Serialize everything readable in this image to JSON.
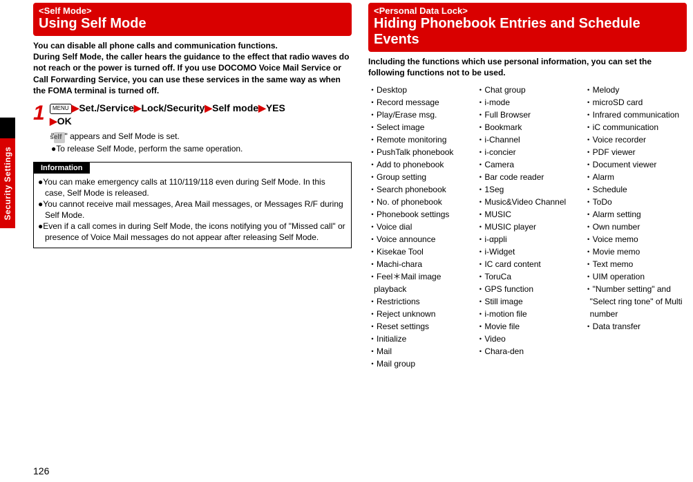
{
  "side_tab": {
    "label": "Security Settings"
  },
  "page_number": "126",
  "left": {
    "tag": "<Self Mode>",
    "title": "Using Self Mode",
    "intro": "You can disable all phone calls and communication functions.\nDuring Self Mode, the caller hears the guidance to the effect that radio waves do not reach or the power is turned off. If you use DOCOMO Voice Mail Service or Call Forwarding Service, you can use these services in the same way as when the FOMA terminal is turned off.",
    "step_num": "1",
    "menu_icon_text": "MENU",
    "path_1a": "Set./Service",
    "path_1b": "Lock/Security",
    "path_1c": "Self mode",
    "path_1d": "YES",
    "path_2a": "OK",
    "arrow": "▶",
    "note_prefix": "\"",
    "self_icon": "self",
    "note_suffix": "\" appears and Self Mode is set.",
    "note2": "●To release Self Mode, perform the same operation.",
    "info_label": "Information",
    "info_items": [
      "●You can make emergency calls at 110/119/118 even during Self Mode. In this case, Self Mode is released.",
      "●You cannot receive mail messages, Area Mail messages, or Messages R/F during Self Mode.",
      "●Even if a call comes in during Self Mode, the icons notifying you of \"Missed call\" or presence of Voice Mail messages do not appear after releasing Self Mode."
    ]
  },
  "right": {
    "tag": "<Personal Data Lock>",
    "title": "Hiding Phonebook Entries and Schedule Events",
    "intro": "Including the functions which use personal information, you can set the following functions not to be used.",
    "functions_col1": [
      "Desktop",
      "Record message",
      "Play/Erase msg.",
      "Select image",
      "Remote monitoring",
      "PushTalk phonebook",
      "Add to phonebook",
      "Group setting",
      "Search phonebook",
      "No. of phonebook",
      "Phonebook settings",
      "Voice dial",
      "Voice announce",
      "Kisekae Tool",
      "Machi-chara",
      "Feel＊Mail image playback",
      "Restrictions",
      "Reject unknown",
      "Reset settings",
      "Initialize",
      "Mail",
      "Mail group"
    ],
    "functions_col2": [
      "Chat group",
      "i-mode",
      "Full Browser",
      "Bookmark",
      "i-Channel",
      "i-concier",
      "Camera",
      "Bar code reader",
      "1Seg",
      "Music&Video Channel",
      "MUSIC",
      "MUSIC player",
      "i-αppli",
      "i-Widget",
      "IC card content",
      "ToruCa",
      "GPS function",
      "Still image",
      "i-motion file",
      "Movie file",
      "Video",
      "Chara-den"
    ],
    "functions_col3": [
      "Melody",
      "microSD card",
      "Infrared communication",
      "iC communication",
      "Voice recorder",
      "PDF viewer",
      "Document viewer",
      "Alarm",
      "Schedule",
      "ToDo",
      "Alarm setting",
      "Own number",
      "Voice memo",
      "Movie memo",
      "Text memo",
      "UIM operation",
      "\"Number setting\" and \"Select ring tone\" of Multi number",
      "Data transfer"
    ]
  }
}
